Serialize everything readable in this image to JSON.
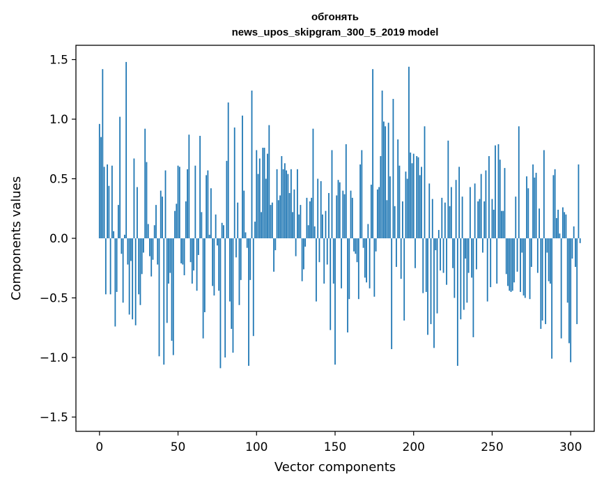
{
  "chart_data": {
    "type": "bar",
    "title_line1": "обгонять",
    "title_line2": "news_upos_skipgram_300_5_2019 model",
    "xlabel": "Vector components",
    "ylabel": "Components values",
    "xlim": [
      -15,
      315
    ],
    "ylim": [
      -1.62,
      1.62
    ],
    "xticks": [
      0,
      50,
      100,
      150,
      200,
      250,
      300
    ],
    "xtick_labels": [
      "0",
      "50",
      "100",
      "150",
      "200",
      "250",
      "300"
    ],
    "yticks": [
      1.5,
      1.0,
      0.5,
      0.0,
      -0.5,
      -1.0,
      -1.5
    ],
    "ytick_labels": [
      "1.5",
      "1.0",
      "0.5",
      "0.0",
      "−0.5",
      "−1.0",
      "−1.5"
    ],
    "bar_color": "#1f77b4",
    "grid": false,
    "values": [
      0.96,
      0.85,
      1.42,
      0.6,
      -0.47,
      0.62,
      0.44,
      -0.47,
      0.61,
      0.06,
      -0.74,
      -0.45,
      0.28,
      1.02,
      -0.13,
      -0.54,
      0.03,
      1.48,
      -0.22,
      -0.64,
      -0.19,
      -0.68,
      0.67,
      -0.73,
      0.43,
      -0.47,
      -0.56,
      -0.3,
      -0.12,
      0.92,
      0.64,
      0.12,
      -0.15,
      -0.32,
      -0.18,
      0.11,
      0.28,
      -0.22,
      -0.99,
      0.4,
      0.35,
      -1.06,
      0.57,
      -0.71,
      -0.38,
      -0.29,
      -0.86,
      -0.98,
      0.23,
      0.29,
      0.61,
      0.6,
      -0.21,
      -0.22,
      -0.31,
      0.31,
      0.58,
      0.87,
      -0.2,
      -0.38,
      -0.27,
      0.61,
      -0.44,
      -0.14,
      0.86,
      0.22,
      -0.84,
      -0.62,
      0.53,
      0.57,
      0.03,
      0.42,
      -0.4,
      -0.48,
      0.2,
      -0.06,
      -0.44,
      -1.09,
      0.13,
      0.11,
      -1.0,
      0.65,
      1.14,
      -0.53,
      -0.76,
      -0.96,
      0.93,
      -0.16,
      0.3,
      -0.56,
      -0.35,
      1.03,
      0.4,
      0.05,
      -0.08,
      -1.07,
      -0.35,
      1.24,
      -0.82,
      0.14,
      0.74,
      0.54,
      0.67,
      0.22,
      0.76,
      0.76,
      0.5,
      0.71,
      0.95,
      0.28,
      0.3,
      -0.28,
      -0.1,
      0.58,
      0.32,
      0.36,
      0.69,
      0.58,
      0.63,
      0.57,
      0.54,
      0.38,
      0.58,
      0.22,
      0.41,
      -0.15,
      0.58,
      0.2,
      0.28,
      -0.36,
      -0.26,
      -0.07,
      0.34,
      0.11,
      0.31,
      0.34,
      0.92,
      0.1,
      -0.53,
      0.5,
      -0.2,
      0.48,
      0.2,
      -0.38,
      0.23,
      -0.22,
      0.38,
      -0.77,
      0.74,
      -0.38,
      -1.06,
      0.36,
      0.49,
      0.47,
      -0.42,
      0.4,
      0.37,
      0.79,
      -0.79,
      -0.51,
      0.4,
      0.34,
      -0.11,
      -0.13,
      -0.2,
      -0.51,
      0.62,
      0.74,
      -0.08,
      -0.33,
      -0.37,
      0.12,
      -0.42,
      0.45,
      1.42,
      -0.49,
      -0.11,
      0.41,
      0.43,
      0.69,
      1.24,
      0.98,
      0.94,
      0.32,
      0.97,
      0.52,
      -0.93,
      1.17,
      0.27,
      -0.24,
      0.83,
      0.61,
      -0.34,
      0.31,
      -0.69,
      0.56,
      0.5,
      1.44,
      0.72,
      0.63,
      0.71,
      -0.25,
      0.69,
      0.68,
      0.53,
      0.6,
      -0.46,
      0.94,
      -0.45,
      -0.81,
      0.46,
      -0.72,
      0.33,
      -0.92,
      -0.1,
      -0.63,
      0.07,
      -0.27,
      0.34,
      -0.29,
      0.3,
      -0.39,
      0.82,
      0.27,
      0.43,
      -0.25,
      -0.5,
      0.49,
      -1.07,
      0.6,
      -0.68,
      0.35,
      -0.6,
      -0.17,
      -0.54,
      -0.29,
      0.43,
      -0.33,
      -0.83,
      0.46,
      -0.26,
      0.31,
      0.33,
      0.54,
      -0.12,
      0.31,
      0.57,
      -0.53,
      0.69,
      -0.41,
      0.33,
      0.24,
      0.78,
      -0.38,
      0.79,
      0.66,
      0.23,
      0.23,
      0.59,
      -0.3,
      -0.4,
      -0.44,
      -0.45,
      -0.44,
      -0.37,
      0.35,
      -0.28,
      0.94,
      -0.45,
      -0.12,
      -0.48,
      -0.5,
      0.52,
      0.42,
      -0.51,
      -0.24,
      0.62,
      0.51,
      0.55,
      -0.29,
      0.25,
      -0.76,
      -0.69,
      0.74,
      -0.72,
      -0.12,
      -0.36,
      -0.38,
      -1.01,
      0.53,
      0.58,
      0.17,
      0.24,
      0.04,
      -0.84,
      0.26,
      0.22,
      0.2,
      -0.54,
      -0.88,
      -1.04,
      -0.17,
      0.1,
      -0.24,
      -0.72,
      0.62,
      -0.04
    ]
  }
}
